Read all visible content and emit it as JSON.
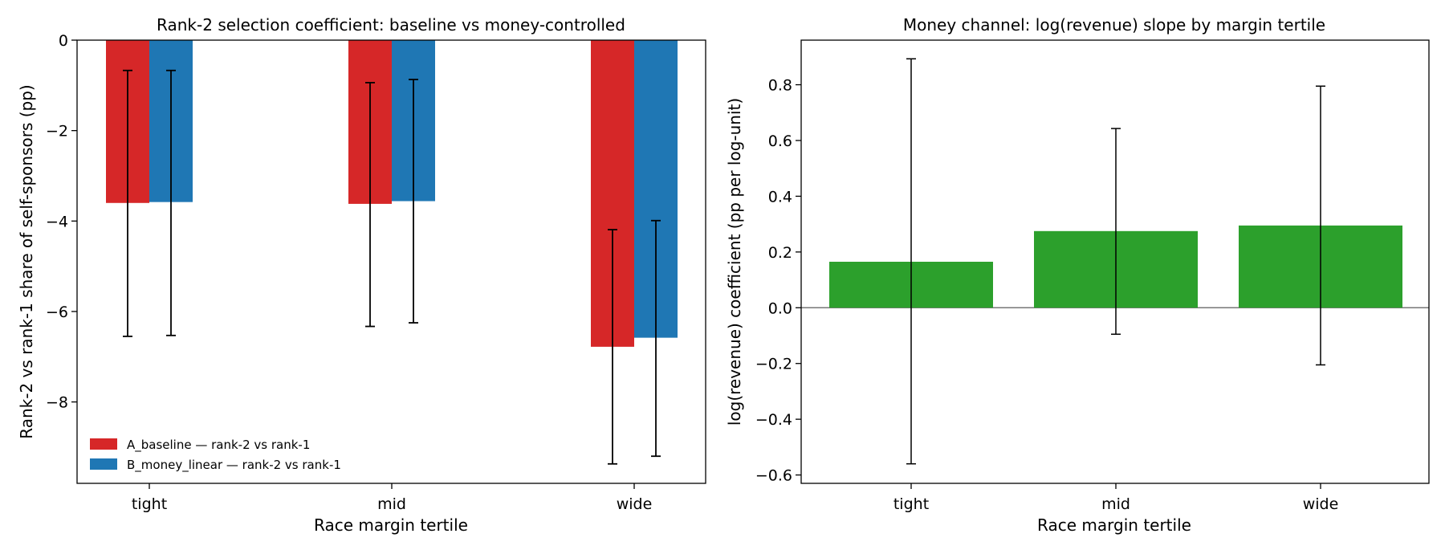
{
  "chart_data": [
    {
      "type": "bar",
      "title": "Rank-2 selection coefficient: baseline vs money-controlled",
      "xlabel": "Race margin tertile",
      "ylabel": "Rank-2 vs rank-1 share of self-sponsors (pp)",
      "categories": [
        "tight",
        "mid",
        "wide"
      ],
      "ylim": [
        -9.8,
        0
      ],
      "yticks": [
        0,
        -2,
        -4,
        -6,
        -8
      ],
      "ytick_labels": [
        "0",
        "−2",
        "−4",
        "−6",
        "−8"
      ],
      "legend_position": "lower-left",
      "series": [
        {
          "name": "A_baseline — rank-2 vs rank-1",
          "color": "#d62728",
          "values": [
            -3.6,
            -3.62,
            -6.78
          ],
          "ci_low": [
            -6.55,
            -6.33,
            -9.37
          ],
          "ci_high": [
            -0.67,
            -0.94,
            -4.19
          ]
        },
        {
          "name": "B_money_linear — rank-2 vs rank-1",
          "color": "#1f77b4",
          "values": [
            -3.58,
            -3.56,
            -6.58
          ],
          "ci_low": [
            -6.53,
            -6.25,
            -9.2
          ],
          "ci_high": [
            -0.67,
            -0.87,
            -3.99
          ]
        }
      ]
    },
    {
      "type": "bar",
      "title": "Money channel: log(revenue) slope by margin tertile",
      "xlabel": "Race margin tertile",
      "ylabel": "log(revenue) coefficient (pp per log-unit)",
      "categories": [
        "tight",
        "mid",
        "wide"
      ],
      "ylim": [
        -0.63,
        0.96
      ],
      "yticks": [
        0.8,
        0.6,
        0.4,
        0.2,
        0.0,
        -0.2,
        -0.4,
        -0.6
      ],
      "ytick_labels": [
        "0.8",
        "0.6",
        "0.4",
        "0.2",
        "0.0",
        "−0.2",
        "−0.4",
        "−0.6"
      ],
      "zero_line": true,
      "series": [
        {
          "color": "#2ca02c",
          "values": [
            0.165,
            0.275,
            0.295
          ],
          "ci_low": [
            -0.56,
            -0.095,
            -0.205
          ],
          "ci_high": [
            0.893,
            0.643,
            0.795
          ]
        }
      ]
    }
  ]
}
